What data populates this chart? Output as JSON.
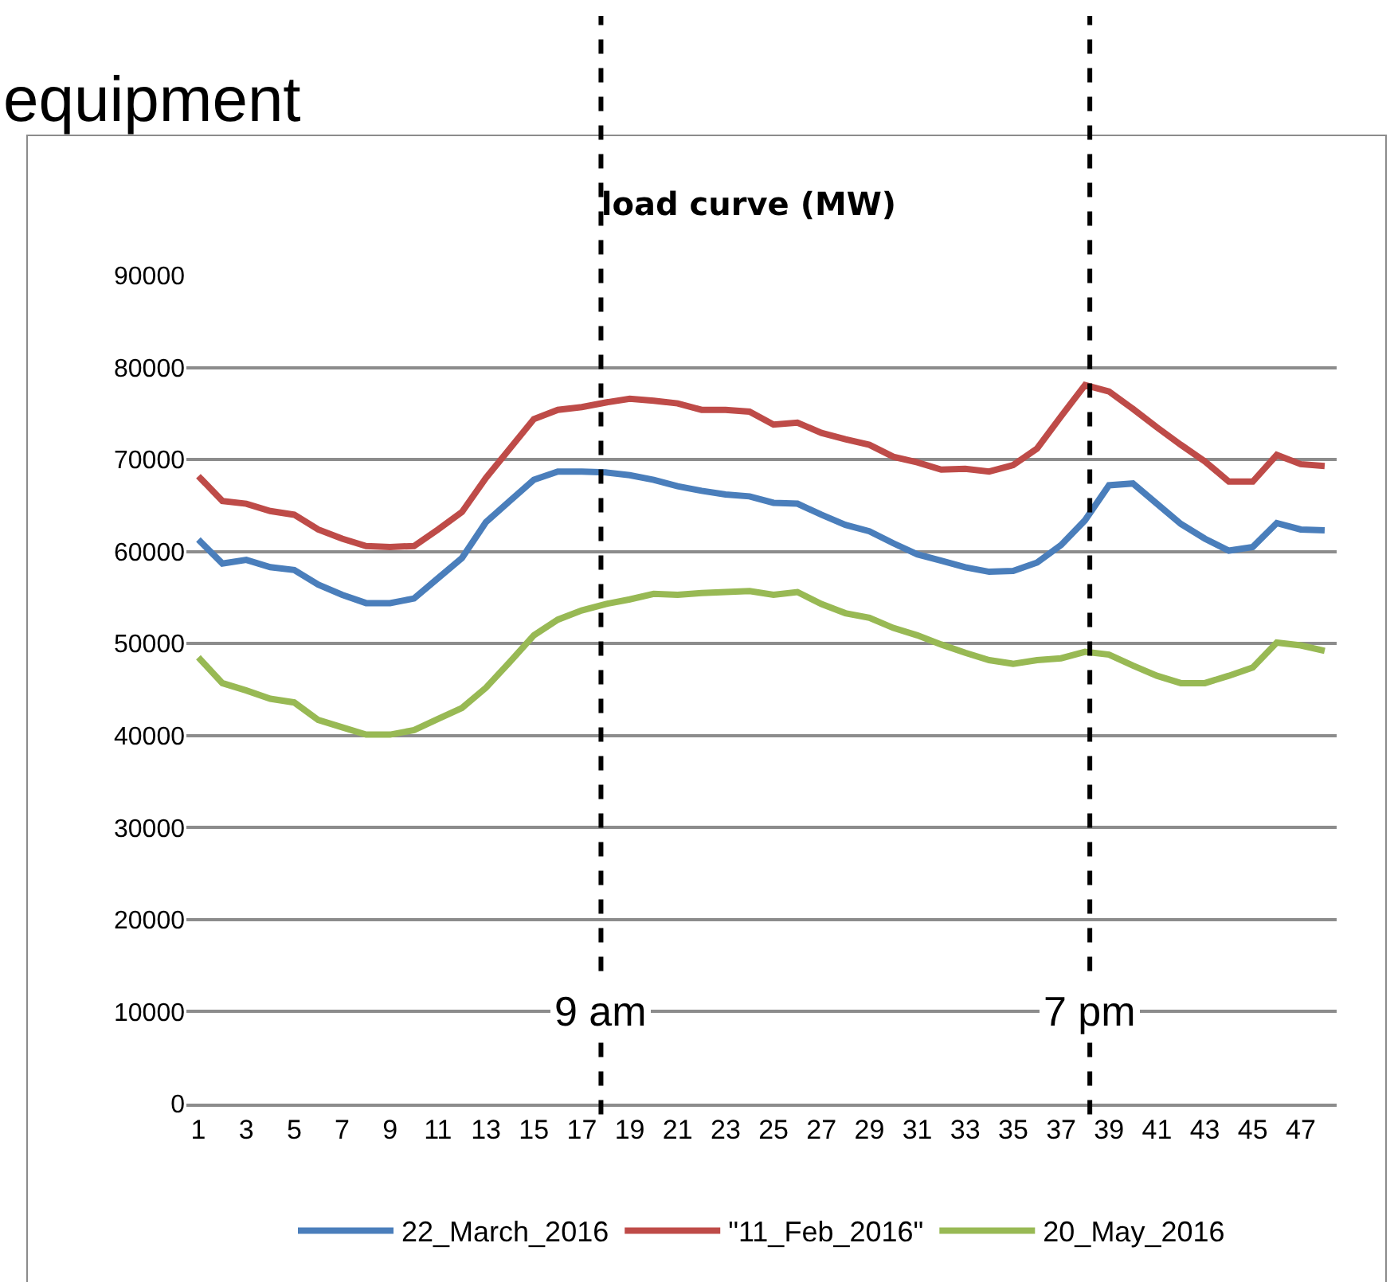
{
  "chart_data": {
    "type": "line",
    "title": "load curve (MW)",
    "annotations": [
      "equipment"
    ],
    "x": [
      1,
      2,
      3,
      4,
      5,
      6,
      7,
      8,
      9,
      10,
      11,
      12,
      13,
      14,
      15,
      16,
      17,
      18,
      19,
      20,
      21,
      22,
      23,
      24,
      25,
      26,
      27,
      28,
      29,
      30,
      31,
      32,
      33,
      34,
      35,
      36,
      37,
      38,
      39,
      40,
      41,
      42,
      43,
      44,
      45,
      46,
      47,
      48
    ],
    "series": [
      {
        "name": "22_March_2016",
        "color": "#4a7ebb",
        "values": [
          61300,
          58700,
          59100,
          58300,
          58000,
          56400,
          55300,
          54400,
          54400,
          54900,
          57100,
          59300,
          63200,
          65500,
          67800,
          68700,
          68700,
          68600,
          68300,
          67800,
          67100,
          66600,
          66200,
          66000,
          65300,
          65200,
          64000,
          62900,
          62200,
          60900,
          59700,
          59000,
          58300,
          57800,
          57900,
          58800,
          60700,
          63400,
          67200,
          67400,
          65200,
          63000,
          61400,
          60100,
          60500,
          63100,
          62400,
          62300
        ]
      },
      {
        "name": "\"11_Feb_2016\"",
        "color": "#be4b48",
        "values": [
          68200,
          65500,
          65200,
          64400,
          64000,
          62400,
          61400,
          60600,
          60500,
          60600,
          62400,
          64300,
          68000,
          71200,
          74400,
          75400,
          75700,
          76200,
          76600,
          76400,
          76100,
          75400,
          75400,
          75200,
          73800,
          74000,
          72900,
          72200,
          71600,
          70300,
          69700,
          68900,
          69000,
          68700,
          69400,
          71200,
          74700,
          78100,
          77400,
          75500,
          73500,
          71600,
          69800,
          67600,
          67600,
          70500,
          69500,
          69300
        ]
      },
      {
        "name": "20_May_2016",
        "color": "#98b954",
        "values": [
          48500,
          45700,
          44900,
          44000,
          43600,
          41700,
          40900,
          40100,
          40100,
          40600,
          41800,
          43000,
          45200,
          48000,
          50900,
          52600,
          53600,
          54300,
          54800,
          55400,
          55300,
          55500,
          55600,
          55700,
          55300,
          55600,
          54300,
          53300,
          52800,
          51700,
          50900,
          49900,
          49000,
          48200,
          47800,
          48200,
          48400,
          49100,
          48800,
          47600,
          46500,
          45700,
          45700,
          46500,
          47400,
          50100,
          49800,
          49200
        ]
      }
    ],
    "xlim": [
      0.5,
      48.5
    ],
    "xticks": [
      1,
      3,
      5,
      7,
      9,
      11,
      13,
      15,
      17,
      19,
      21,
      23,
      25,
      27,
      29,
      31,
      33,
      35,
      37,
      39,
      41,
      43,
      45,
      47
    ],
    "ylim": [
      0,
      90000
    ],
    "yticks": [
      0,
      10000,
      20000,
      30000,
      40000,
      50000,
      60000,
      70000,
      80000,
      90000
    ],
    "ref_lines": [
      {
        "axis": "x",
        "value": 17.8,
        "label": "9 am",
        "color": "#000000",
        "line_style": "dashed"
      },
      {
        "axis": "x",
        "value": 38.2,
        "label": "7 pm",
        "color": "#000000",
        "line_style": "dashed"
      }
    ],
    "grid": "y",
    "legend": "bottom",
    "marker": "none",
    "line_style": "solid"
  }
}
